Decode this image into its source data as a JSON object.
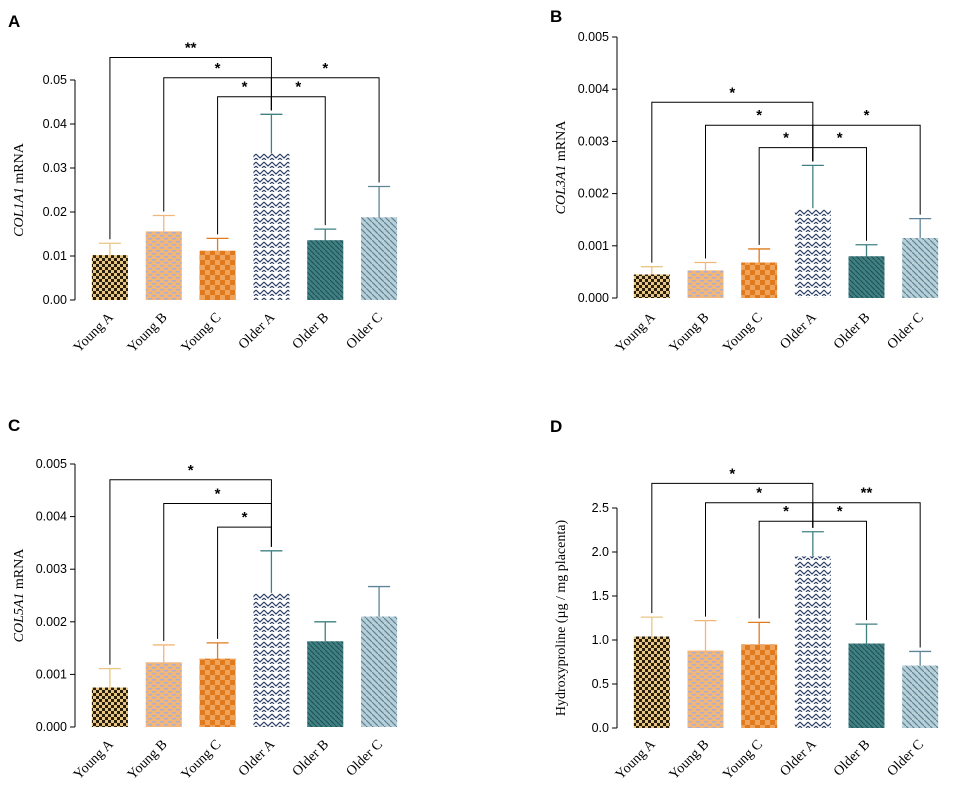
{
  "figure": {
    "colors": {
      "young_a": "#e8c685",
      "young_a_dark": "#2a1f0c",
      "young_b": "#f3b679",
      "young_b_dash": "#a9aed6",
      "young_c": "#f0a35a",
      "young_c_dark": "#e07a1c",
      "older_a": "#ffffff",
      "older_a_line": "#2c3e66",
      "older_b": "#3f8083",
      "older_b_line": "#1f4f55",
      "older_c": "#b7cfd6",
      "older_c_line": "#5f8497"
    }
  },
  "chart_data": [
    {
      "panel": "A",
      "type": "bar",
      "ylabel_gene": "COL1A1",
      "ylabel_suffix": " mRNA",
      "ylim": [
        0,
        0.05
      ],
      "yticks": [
        "0.00",
        "0.01",
        "0.02",
        "0.03",
        "0.04",
        "0.05"
      ],
      "categories": [
        "Young A",
        "Young B",
        "Young C",
        "Older A",
        "Older B",
        "Older C"
      ],
      "values": [
        0.0102,
        0.0156,
        0.0112,
        0.0333,
        0.0136,
        0.0188
      ],
      "errors": [
        0.0027,
        0.0036,
        0.0028,
        0.0089,
        0.0025,
        0.007
      ],
      "significance": [
        {
          "from": "Young A",
          "to": "Older A",
          "label": "**",
          "level": 0.0551
        },
        {
          "from": "Young B",
          "to": "Older A",
          "label": "*",
          "level": 0.0505
        },
        {
          "from": "Young C",
          "to": "Older A",
          "label": "*",
          "level": 0.0462
        },
        {
          "from": "Older A",
          "to": "Older B",
          "label": "*",
          "level": 0.0462
        },
        {
          "from": "Older A",
          "to": "Older C",
          "label": "*",
          "level": 0.0505
        }
      ]
    },
    {
      "panel": "B",
      "type": "bar",
      "ylabel_gene": "COL3A1",
      "ylabel_suffix": " mRNA",
      "ylim": [
        0,
        0.005
      ],
      "yticks": [
        "0.000",
        "0.001",
        "0.002",
        "0.003",
        "0.004",
        "0.005"
      ],
      "categories": [
        "Young A",
        "Young B",
        "Young C",
        "Older A",
        "Older B",
        "Older C"
      ],
      "values": [
        0.00045,
        0.00053,
        0.00068,
        0.00172,
        0.0008,
        0.00115
      ],
      "errors": [
        0.00015,
        0.00015,
        0.00026,
        0.00082,
        0.00022,
        0.00037
      ],
      "significance": [
        {
          "from": "Young A",
          "to": "Older A",
          "label": "*",
          "level": 0.00375
        },
        {
          "from": "Young B",
          "to": "Older A",
          "label": "*",
          "level": 0.00331
        },
        {
          "from": "Young C",
          "to": "Older A",
          "label": "*",
          "level": 0.00288
        },
        {
          "from": "Older A",
          "to": "Older B",
          "label": "*",
          "level": 0.00288
        },
        {
          "from": "Older A",
          "to": "Older C",
          "label": "*",
          "level": 0.00331
        }
      ]
    },
    {
      "panel": "C",
      "type": "bar",
      "ylabel_gene": "COL5A1",
      "ylabel_suffix": " mRNA",
      "ylim": [
        0,
        0.005
      ],
      "yticks": [
        "0.000",
        "0.001",
        "0.002",
        "0.003",
        "0.004",
        "0.005"
      ],
      "categories": [
        "Young A",
        "Young B",
        "Young C",
        "Older A",
        "Older B",
        "Older C"
      ],
      "values": [
        0.00075,
        0.00123,
        0.0013,
        0.00255,
        0.00163,
        0.0021
      ],
      "errors": [
        0.00036,
        0.00033,
        0.0003,
        0.0008,
        0.00037,
        0.00057
      ],
      "significance": [
        {
          "from": "Young A",
          "to": "Older A",
          "label": "*",
          "level": 0.0047
        },
        {
          "from": "Young B",
          "to": "Older A",
          "label": "*",
          "level": 0.00425
        },
        {
          "from": "Young C",
          "to": "Older A",
          "label": "*",
          "level": 0.0038
        }
      ]
    },
    {
      "panel": "D",
      "type": "bar",
      "ylabel_gene": "",
      "ylabel_suffix": "Hydroxyproline (µg / mg placenta)",
      "ylim": [
        0,
        2.5
      ],
      "yticks": [
        "0.0",
        "0.5",
        "1.0",
        "1.5",
        "2.0",
        "2.5"
      ],
      "categories": [
        "Young A",
        "Young  B",
        "Young C",
        "Older A",
        "Older B",
        "Older C"
      ],
      "values": [
        1.04,
        0.88,
        0.95,
        1.95,
        0.96,
        0.71
      ],
      "errors": [
        0.22,
        0.34,
        0.25,
        0.28,
        0.22,
        0.16
      ],
      "significance": [
        {
          "from": "Young A",
          "to": "Older A",
          "label": "*",
          "level": 2.78
        },
        {
          "from": "Young  B",
          "to": "Older A",
          "label": "*",
          "level": 2.56
        },
        {
          "from": "Young C",
          "to": "Older A",
          "label": "*",
          "level": 2.35
        },
        {
          "from": "Older A",
          "to": "Older B",
          "label": "*",
          "level": 2.35
        },
        {
          "from": "Older A",
          "to": "Older C",
          "label": "**",
          "level": 2.56
        }
      ]
    }
  ]
}
